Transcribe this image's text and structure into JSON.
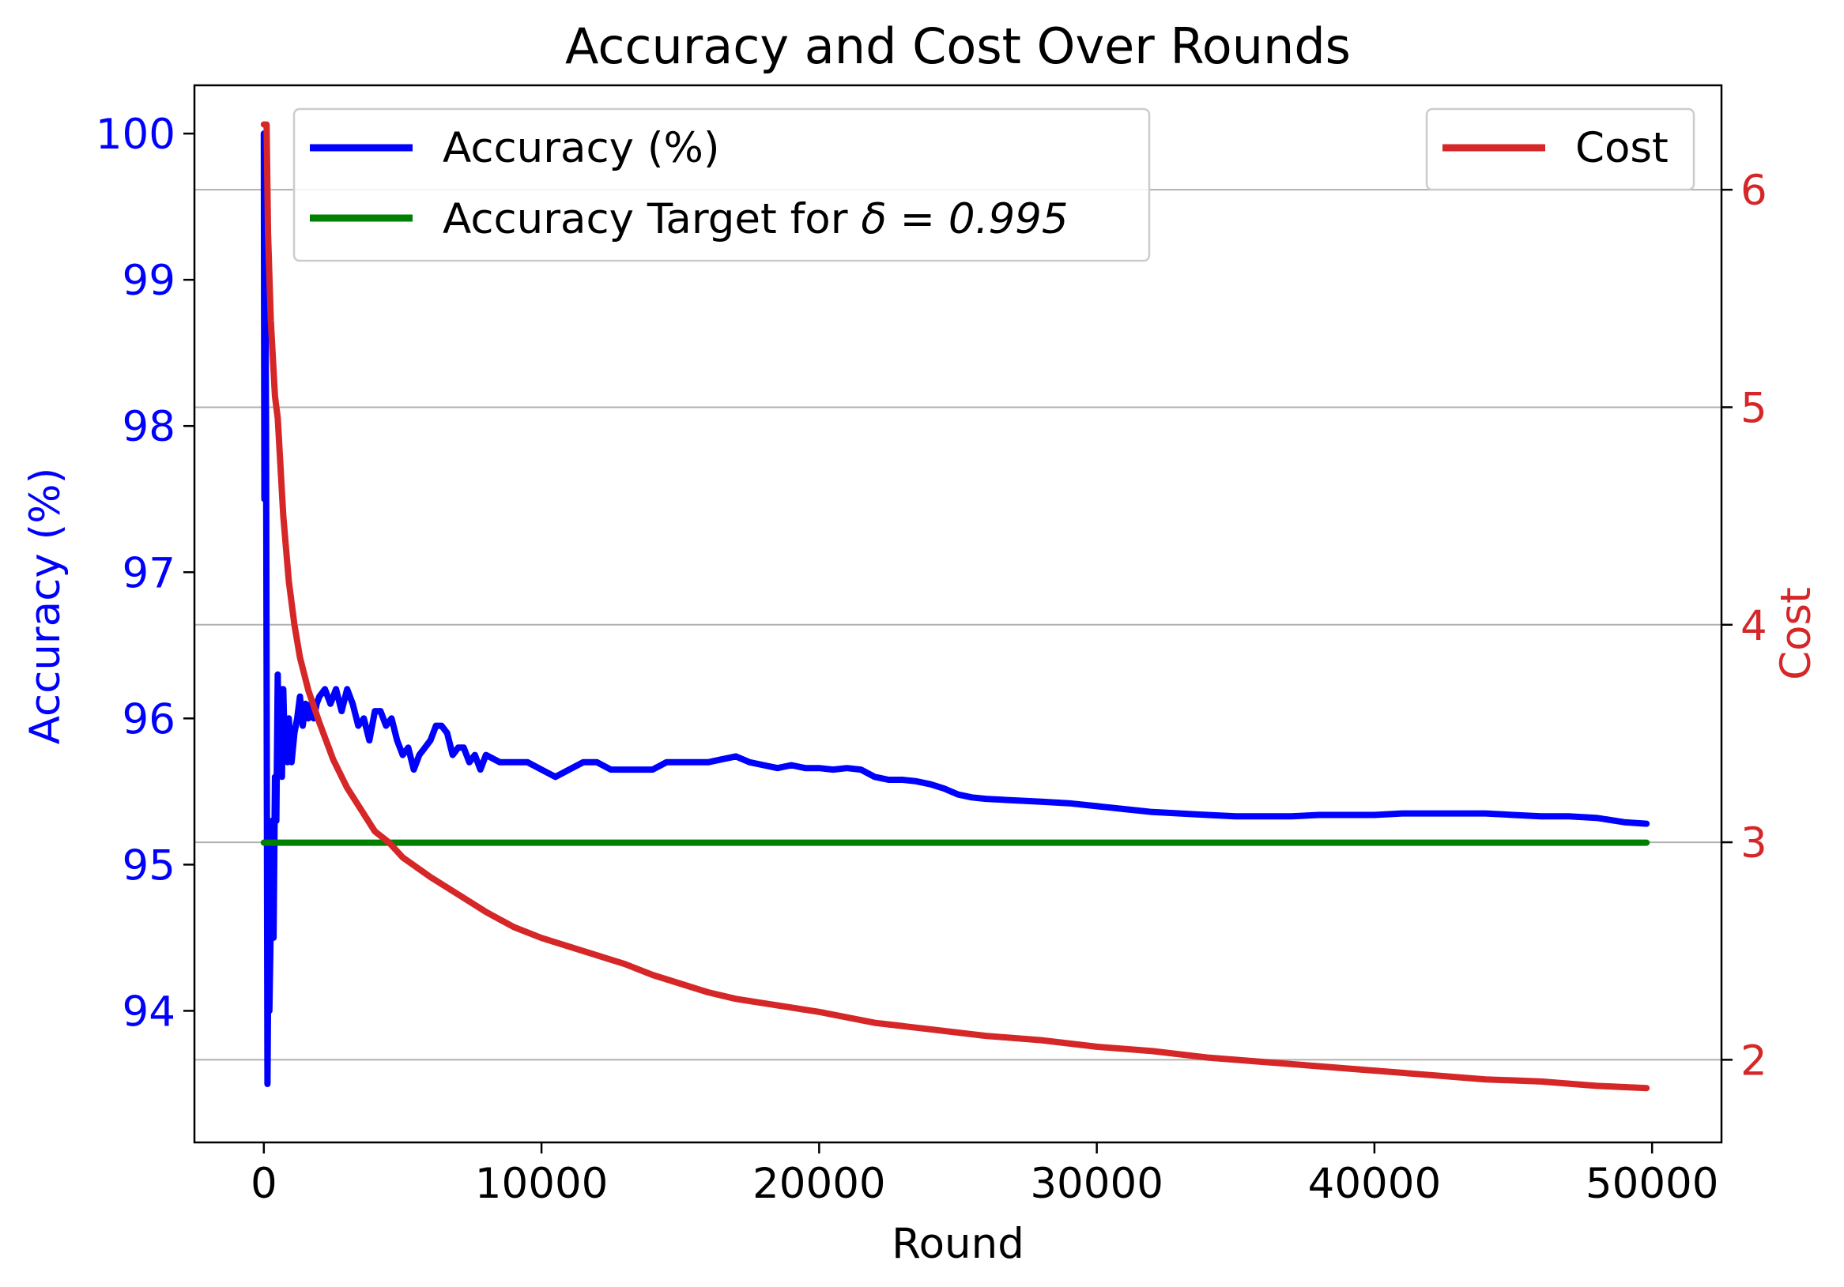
{
  "chart_data": {
    "type": "line",
    "title": "Accuracy and Cost Over Rounds",
    "xlabel": "Round",
    "ylabel_left": "Accuracy (%)",
    "ylabel_right": "Cost",
    "xlim": [
      -2500,
      52500
    ],
    "ylim_left": [
      93.1,
      100.33
    ],
    "ylim_right": [
      1.62,
      6.48
    ],
    "x_ticks": [
      0,
      10000,
      20000,
      30000,
      40000,
      50000
    ],
    "x_tick_labels": [
      "0",
      "10000",
      "20000",
      "30000",
      "40000",
      "50000"
    ],
    "y_left_ticks": [
      94,
      95,
      96,
      97,
      98,
      99,
      100
    ],
    "y_left_tick_labels": [
      "94",
      "95",
      "96",
      "97",
      "98",
      "99",
      "100"
    ],
    "y_right_ticks": [
      2,
      3,
      4,
      5,
      6
    ],
    "y_right_tick_labels": [
      "2",
      "3",
      "4",
      "5",
      "6"
    ],
    "grid": "horizontal lines at right-axis ticks",
    "legend_left": {
      "placement": "upper left",
      "entries": [
        {
          "label_text": "Accuracy (%)",
          "color": "#0000ff"
        },
        {
          "label_text": "Accuracy Target for ",
          "label_math": "δ = 0.995",
          "color": "#008000"
        }
      ]
    },
    "legend_right": {
      "placement": "upper right",
      "entries": [
        {
          "label_text": "Cost",
          "color": "#d62728"
        }
      ]
    },
    "colors": {
      "accuracy": "#0000ff",
      "target": "#008000",
      "cost": "#d62728",
      "left_axis": "#0000ff",
      "right_axis": "#d62728",
      "grid": "#b0b0b0"
    },
    "series": [
      {
        "name": "Accuracy (%)",
        "axis": "left",
        "x": [
          0,
          20,
          50,
          80,
          100,
          130,
          160,
          200,
          250,
          300,
          350,
          400,
          450,
          500,
          550,
          600,
          650,
          700,
          750,
          800,
          850,
          900,
          1000,
          1100,
          1200,
          1300,
          1400,
          1500,
          1600,
          1700,
          1800,
          1900,
          2000,
          2200,
          2400,
          2600,
          2800,
          3000,
          3200,
          3400,
          3600,
          3800,
          4000,
          4200,
          4400,
          4600,
          4800,
          5000,
          5200,
          5400,
          5600,
          5800,
          6000,
          6200,
          6400,
          6600,
          6800,
          7000,
          7200,
          7400,
          7600,
          7800,
          8000,
          8500,
          9000,
          9500,
          10000,
          10500,
          11000,
          11500,
          12000,
          12500,
          13000,
          13500,
          14000,
          14500,
          15000,
          15500,
          16000,
          16500,
          17000,
          17500,
          18000,
          18500,
          19000,
          19500,
          20000,
          20500,
          21000,
          21500,
          22000,
          22500,
          23000,
          23500,
          24000,
          24500,
          25000,
          25500,
          26000,
          27000,
          28000,
          29000,
          30000,
          31000,
          32000,
          33000,
          34000,
          35000,
          36000,
          37000,
          38000,
          39000,
          40000,
          41000,
          42000,
          43000,
          44000,
          45000,
          46000,
          47000,
          48000,
          49000,
          49800
        ],
        "values": [
          100.0,
          97.5,
          99.2,
          98.0,
          96.3,
          93.5,
          94.3,
          94.0,
          94.6,
          95.3,
          94.5,
          95.6,
          95.3,
          96.3,
          95.7,
          96.2,
          95.6,
          96.2,
          95.8,
          95.9,
          95.7,
          96.0,
          95.7,
          95.9,
          96.0,
          96.15,
          95.95,
          96.1,
          96.0,
          96.1,
          96.0,
          96.1,
          96.15,
          96.2,
          96.1,
          96.2,
          96.05,
          96.2,
          96.1,
          95.95,
          96.0,
          95.85,
          96.05,
          96.05,
          95.95,
          96.0,
          95.85,
          95.75,
          95.8,
          95.65,
          95.75,
          95.8,
          95.85,
          95.95,
          95.95,
          95.9,
          95.75,
          95.8,
          95.8,
          95.7,
          95.75,
          95.65,
          95.75,
          95.7,
          95.7,
          95.7,
          95.65,
          95.6,
          95.65,
          95.7,
          95.7,
          95.65,
          95.65,
          95.65,
          95.65,
          95.7,
          95.7,
          95.7,
          95.7,
          95.72,
          95.74,
          95.7,
          95.68,
          95.66,
          95.68,
          95.66,
          95.66,
          95.65,
          95.66,
          95.65,
          95.6,
          95.58,
          95.58,
          95.57,
          95.55,
          95.52,
          95.48,
          95.46,
          95.45,
          95.44,
          95.43,
          95.42,
          95.4,
          95.38,
          95.36,
          95.35,
          95.34,
          95.33,
          95.33,
          95.33,
          95.34,
          95.34,
          95.34,
          95.35,
          95.35,
          95.35,
          95.35,
          95.34,
          95.33,
          95.33,
          95.32,
          95.29,
          95.28
        ]
      },
      {
        "name": "Accuracy Target for δ = 0.995",
        "axis": "left",
        "x": [
          0,
          49800
        ],
        "values": [
          95.15,
          95.15
        ]
      },
      {
        "name": "Cost",
        "axis": "right",
        "x": [
          0,
          100,
          150,
          250,
          400,
          500,
          700,
          900,
          1100,
          1300,
          1600,
          2000,
          2500,
          3000,
          3500,
          4000,
          4500,
          5000,
          6000,
          7000,
          8000,
          9000,
          10000,
          11000,
          12000,
          13000,
          14000,
          15000,
          16000,
          17000,
          18000,
          19000,
          20000,
          22000,
          24000,
          26000,
          28000,
          30000,
          32000,
          34000,
          36000,
          38000,
          40000,
          42000,
          44000,
          46000,
          48000,
          49800
        ],
        "values": [
          6.3,
          6.3,
          5.8,
          5.4,
          5.05,
          4.95,
          4.5,
          4.2,
          4.0,
          3.85,
          3.7,
          3.55,
          3.38,
          3.25,
          3.15,
          3.05,
          3.0,
          2.93,
          2.84,
          2.76,
          2.68,
          2.61,
          2.56,
          2.52,
          2.48,
          2.44,
          2.39,
          2.35,
          2.31,
          2.28,
          2.26,
          2.24,
          2.22,
          2.17,
          2.14,
          2.11,
          2.09,
          2.06,
          2.04,
          2.01,
          1.99,
          1.97,
          1.95,
          1.93,
          1.91,
          1.9,
          1.88,
          1.87
        ]
      }
    ]
  }
}
